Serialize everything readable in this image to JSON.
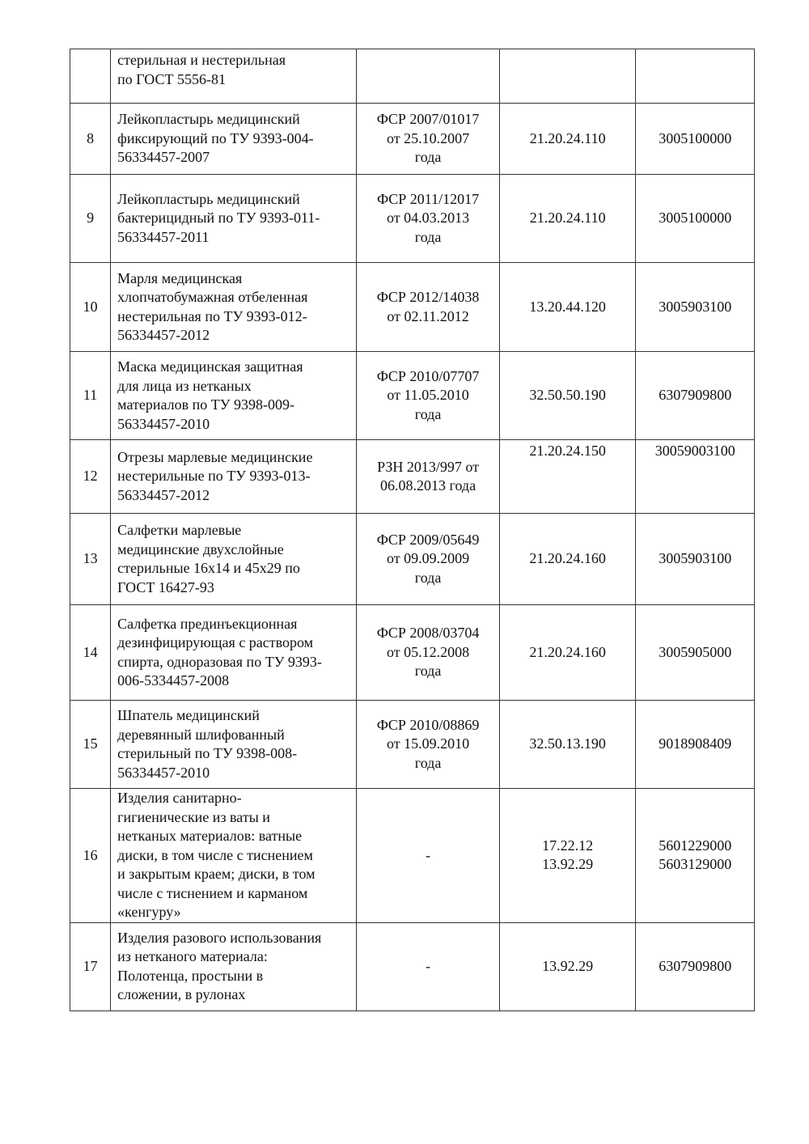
{
  "rows": [
    {
      "num": "",
      "name": "стерильная и нестерильная\nпо ГОСТ 5556-81",
      "reg": "",
      "okpd": "",
      "tnved": ""
    },
    {
      "num": "8",
      "name": "Лейкопластырь медицинский\nфиксирующий по ТУ 9393-004-\n56334457-2007",
      "reg": "ФСР 2007/01017\nот 25.10.2007\nгода",
      "okpd": "21.20.24.110",
      "tnved": "3005100000"
    },
    {
      "num": "9",
      "name": "Лейкопластырь медицинский\nбактерицидный по ТУ 9393-011-\n56334457-2011",
      "reg": "ФСР 2011/12017\nот 04.03.2013\nгода",
      "okpd": "21.20.24.110",
      "tnved": "3005100000"
    },
    {
      "num": "10",
      "name": "Марля медицинская\nхлопчатобумажная отбеленная\nнестерильная по ТУ 9393-012-\n56334457-2012",
      "reg": "ФСР 2012/14038\nот 02.11.2012",
      "okpd": "13.20.44.120",
      "tnved": "3005903100"
    },
    {
      "num": "11",
      "name": "Маска медицинская защитная\nдля лица из нетканых\nматериалов по ТУ 9398-009-\n56334457-2010",
      "reg": "ФСР 2010/07707\nот 11.05.2010\nгода",
      "okpd": "32.50.50.190",
      "tnved": "6307909800"
    },
    {
      "num": "12",
      "name": "Отрезы марлевые медицинские\nнестерильные по ТУ 9393-013-\n56334457-2012",
      "reg": "РЗН 2013/997 от\n06.08.2013 года",
      "okpd": "21.20.24.150",
      "tnved": "30059003100"
    },
    {
      "num": "13",
      "name": "Салфетки марлевые\nмедицинские двухслойные\nстерильные 16х14 и 45х29 по\nГОСТ 16427-93",
      "reg": "ФСР 2009/05649\nот 09.09.2009\nгода",
      "okpd": "21.20.24.160",
      "tnved": "3005903100"
    },
    {
      "num": "14",
      "name": "Салфетка прединъекционная\nдезинфицирующая с раствором\nспирта, одноразовая по ТУ 9393-\n006-5334457-2008",
      "reg": "ФСР 2008/03704\nот 05.12.2008\nгода",
      "okpd": "21.20.24.160",
      "tnved": "3005905000"
    },
    {
      "num": "15",
      "name": "Шпатель медицинский\nдеревянный шлифованный\nстерильный по ТУ 9398-008-\n56334457-2010",
      "reg": "ФСР 2010/08869\nот 15.09.2010\nгода",
      "okpd": "32.50.13.190",
      "tnved": "9018908409"
    },
    {
      "num": "16",
      "name": "Изделия санитарно-\nгигиенические из ваты и\nнетканых материалов: ватные\nдиски, в том числе с тиснением\nи закрытым краем; диски, в том\nчисле с тиснением и карманом\n«кенгуру»",
      "reg": "-",
      "okpd": "17.22.12\n13.92.29",
      "tnved": "5601229000\n5603129000"
    },
    {
      "num": "17",
      "name": "Изделия разового использования\nиз нетканого материала:\nПолотенца, простыни в\nсложении, в рулонах",
      "reg": "-",
      "okpd": "13.92.29",
      "tnved": "6307909800"
    }
  ]
}
